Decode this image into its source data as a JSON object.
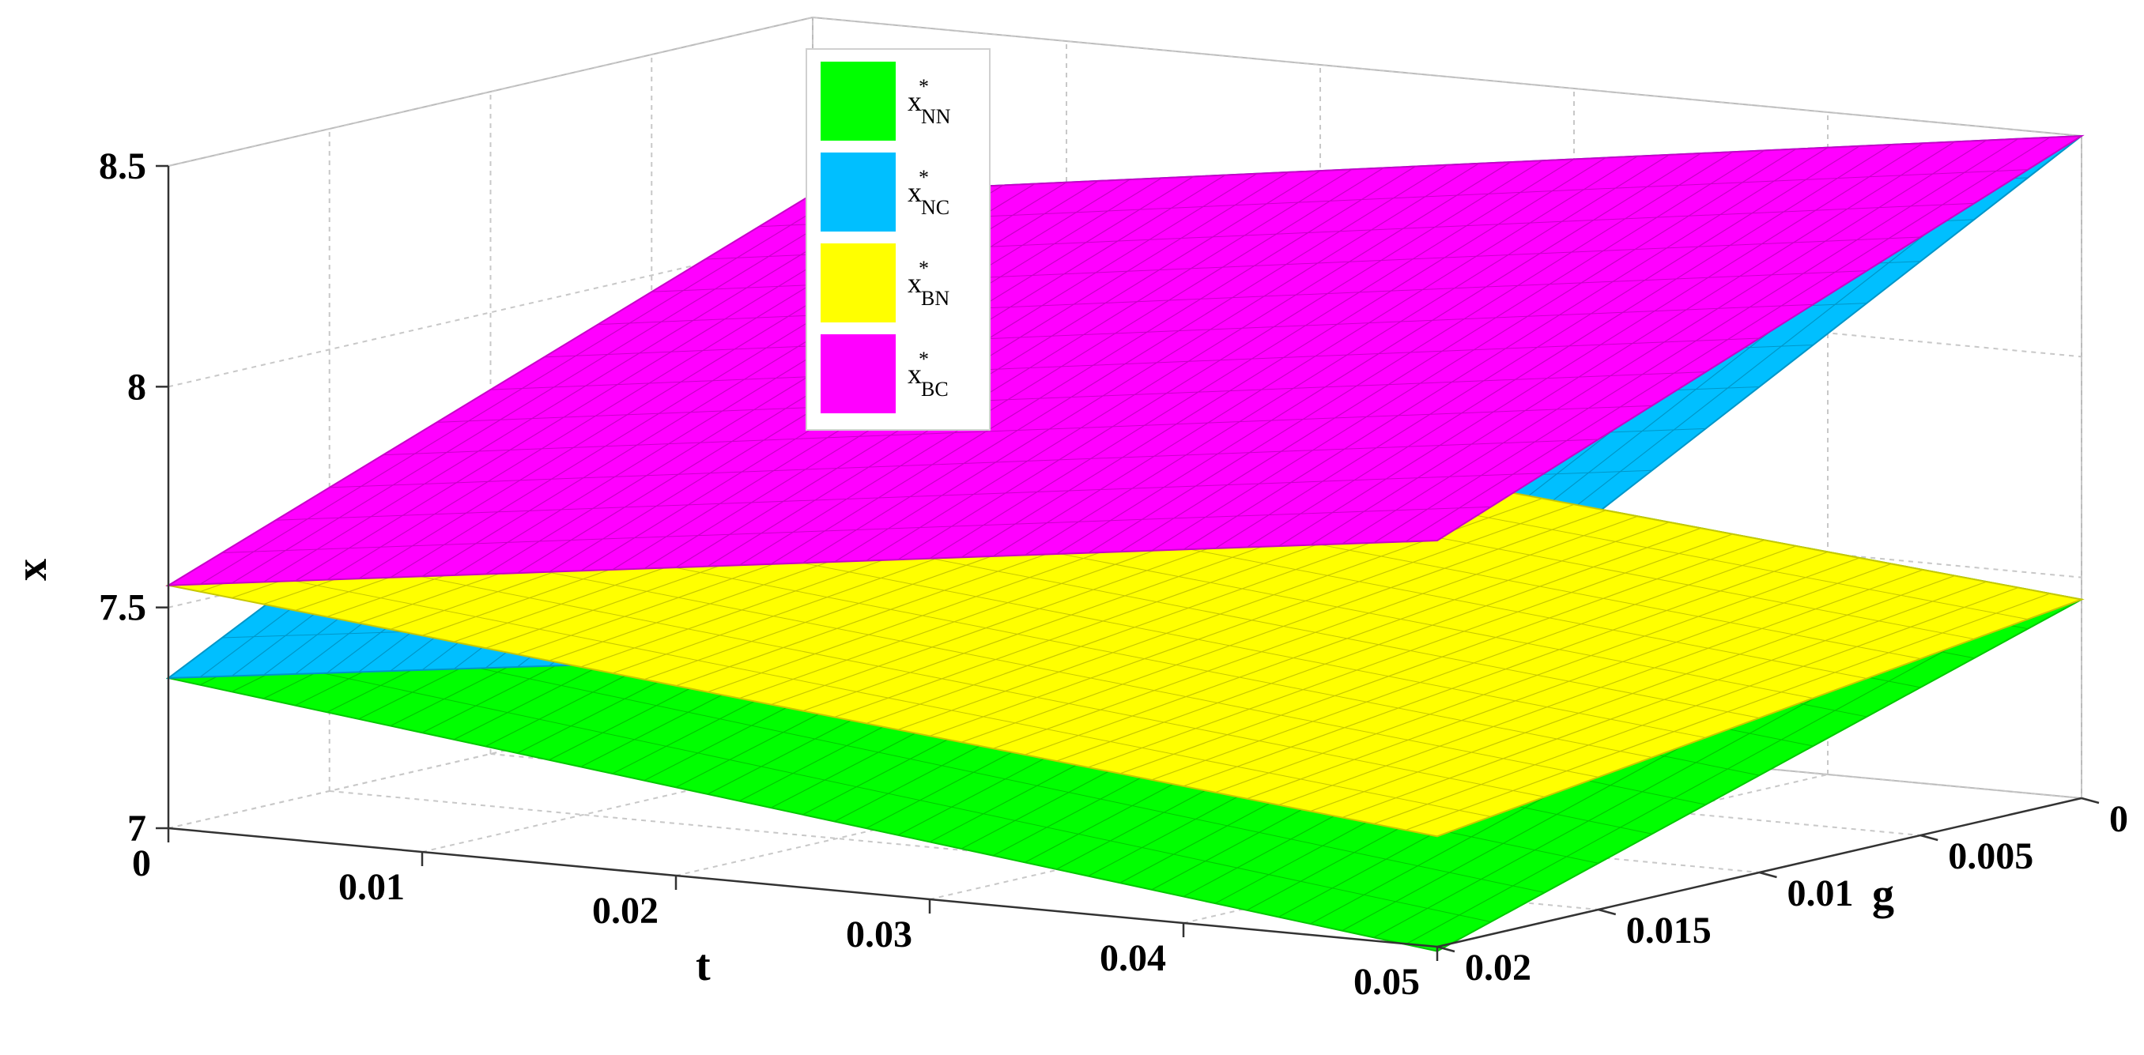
{
  "chart_data": {
    "type": "surface3d",
    "title": "",
    "xlabel": "t",
    "ylabel": "g",
    "zlabel": "x",
    "xlim": [
      0,
      0.05
    ],
    "ylim": [
      0,
      0.02
    ],
    "zlim": [
      7,
      8.5
    ],
    "xticks": [
      "0",
      "0.01",
      "0.02",
      "0.03",
      "0.04",
      "0.05"
    ],
    "yticks": [
      "0",
      "0.005",
      "0.01",
      "0.015",
      "0.02"
    ],
    "zticks": [
      "7",
      "7.5",
      "8",
      "8.5"
    ],
    "grid": true,
    "legend_position": "top-center",
    "legend": [
      {
        "base": "x",
        "sup": "*",
        "sub": "NN",
        "color": "#00ff00"
      },
      {
        "base": "x",
        "sup": "*",
        "sub": "NC",
        "color": "#00bfff"
      },
      {
        "base": "x",
        "sup": "*",
        "sub": "BN",
        "color": "#ffff00"
      },
      {
        "base": "x",
        "sup": "*",
        "sub": "BC",
        "color": "#ff00ff"
      }
    ],
    "series": [
      {
        "name": "x*NN",
        "color": "#00ff00",
        "stroke": "#00c800",
        "corners": [
          {
            "t": 0,
            "g": 0,
            "x": 7.72
          },
          {
            "t": 0.05,
            "g": 0,
            "x": 7.45
          },
          {
            "t": 0.05,
            "g": 0.02,
            "x": 6.99
          },
          {
            "t": 0,
            "g": 0.02,
            "x": 7.34
          }
        ]
      },
      {
        "name": "x*NC",
        "color": "#00bfff",
        "stroke": "#0096c8",
        "corners": [
          {
            "t": 0,
            "g": 0,
            "x": 8.1
          },
          {
            "t": 0.05,
            "g": 0,
            "x": 8.5
          },
          {
            "t": 0.05,
            "g": 0.02,
            "x": 7.7
          },
          {
            "t": 0,
            "g": 0.02,
            "x": 7.34
          }
        ]
      },
      {
        "name": "x*BN",
        "color": "#ffff00",
        "stroke": "#c8c800",
        "corners": [
          {
            "t": 0,
            "g": 0,
            "x": 7.72
          },
          {
            "t": 0.05,
            "g": 0,
            "x": 7.45
          },
          {
            "t": 0.05,
            "g": 0.02,
            "x": 7.25
          },
          {
            "t": 0,
            "g": 0.02,
            "x": 7.55
          }
        ]
      },
      {
        "name": "x*BC",
        "color": "#ff00ff",
        "stroke": "#c800c8",
        "corners": [
          {
            "t": 0,
            "g": 0,
            "x": 8.1
          },
          {
            "t": 0.05,
            "g": 0,
            "x": 8.5
          },
          {
            "t": 0.05,
            "g": 0.02,
            "x": 7.92
          },
          {
            "t": 0,
            "g": 0.02,
            "x": 7.55
          }
        ]
      }
    ]
  }
}
